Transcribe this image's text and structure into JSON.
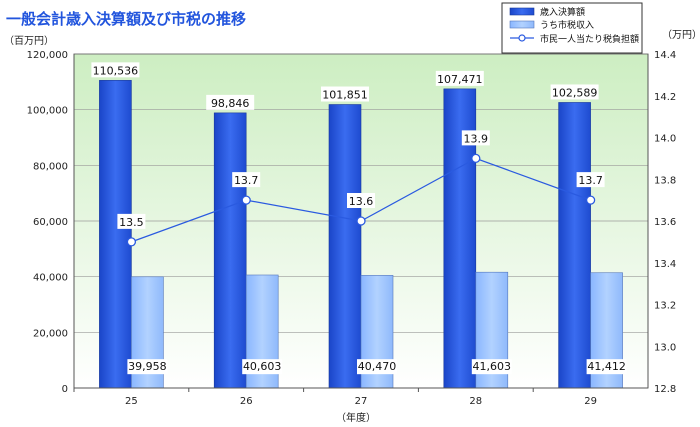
{
  "chart_data": {
    "type": "bar",
    "title": "一般会計歳入決算額及び市税の推移",
    "categories": [
      "25",
      "26",
      "27",
      "28",
      "29"
    ],
    "xlabel": "（年度）",
    "y_left": {
      "unit": "（百万円）",
      "ylim": [
        0,
        120000
      ],
      "ticks": [
        "0",
        "20,000",
        "40,000",
        "60,000",
        "80,000",
        "100,000",
        "120,000"
      ]
    },
    "y_right": {
      "unit": "（万円）",
      "ylim": [
        12.8,
        14.4
      ],
      "ticks": [
        "12.8",
        "13.0",
        "13.2",
        "13.4",
        "13.6",
        "13.8",
        "14.0",
        "14.2",
        "14.4"
      ]
    },
    "series": [
      {
        "name": "歳入決算額",
        "type": "bar",
        "axis": "left",
        "color": "#2a5ae0",
        "values": [
          110536,
          98846,
          101851,
          107471,
          102589
        ],
        "labels": [
          "110,536",
          "98,846",
          "101,851",
          "107,471",
          "102,589"
        ]
      },
      {
        "name": "うち市税収入",
        "type": "bar",
        "axis": "left",
        "color": "#9cc3ff",
        "values": [
          39958,
          40603,
          40470,
          41603,
          41412
        ],
        "labels": [
          "39,958",
          "40,603",
          "40,470",
          "41,603",
          "41,412"
        ]
      },
      {
        "name": "市民一人当たり税負担額",
        "type": "line",
        "axis": "right",
        "color": "#2a5ae0",
        "values": [
          13.5,
          13.7,
          13.6,
          13.9,
          13.7
        ],
        "labels": [
          "13.5",
          "13.7",
          "13.6",
          "13.9",
          "13.7"
        ]
      }
    ],
    "legend_position": "top-right",
    "background_gradient": [
      "#ffffff",
      "#cdeec2"
    ],
    "grid": true
  }
}
